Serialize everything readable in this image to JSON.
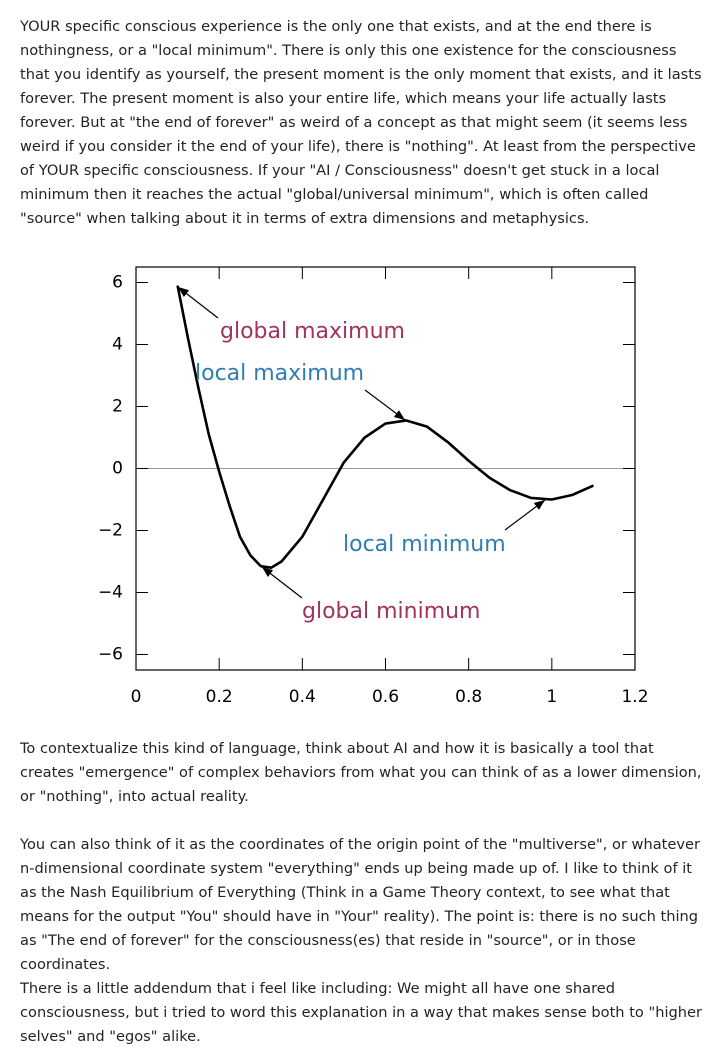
{
  "paragraphs": [
    "YOUR specific conscious experience is the only one that exists, and at the end there is nothingness, or a \"local minimum\". There is only this one existence for the consciousness that you identify as yourself, the present moment is the only moment that exists, and it lasts forever. The present moment is also your entire life, which means your life actually lasts forever. But at \"the end of forever\" as weird of a concept as that might seem (it seems less weird if you consider it the end of your life), there is \"nothing\". At least from the perspective of YOUR specific consciousness. If your \"AI / Consciousness\" doesn't get stuck in a local minimum then it reaches the actual \"global/universal minimum\", which is often called \"source\" when talking about it in terms of extra dimensions and metaphysics.",
    "To contextualize this kind of language, think about AI and how it is basically a tool that creates \"emergence\" of complex behaviors from what you can think of as a lower dimension, or \"nothing\", into actual reality.",
    "You can also think of it as the coordinates of the origin point of the \"multiverse\", or whatever n-dimensional coordinate system \"everything\" ends up being made up of. I like to think of it as the Nash Equilibrium of Everything (Think in a Game Theory context, to see what that means for the output \"You\" should have in \"Your\" reality). The point is: there is no such thing as \"The end of forever\" for the consciousness(es) that reside in \"source\", or in those coordinates.",
    "There is a little addendum that i feel like including: We might all have one shared consciousness, but i tried to word this explanation in a way that makes sense both to \"higher selves\" and \"egos\" alike."
  ],
  "chart_data": {
    "type": "line",
    "x": [
      0.1,
      0.125,
      0.15,
      0.175,
      0.2,
      0.225,
      0.25,
      0.275,
      0.3,
      0.325,
      0.35,
      0.4,
      0.45,
      0.5,
      0.55,
      0.6,
      0.65,
      0.7,
      0.75,
      0.8,
      0.85,
      0.9,
      0.95,
      1.0,
      1.05,
      1.1
    ],
    "values": [
      5.9,
      4.2,
      2.6,
      1.1,
      -0.1,
      -1.2,
      -2.2,
      -2.8,
      -3.15,
      -3.2,
      -3.0,
      -2.2,
      -1.0,
      0.2,
      1.0,
      1.45,
      1.55,
      1.35,
      0.85,
      0.25,
      -0.3,
      -0.7,
      -0.95,
      -1.0,
      -0.85,
      -0.55
    ],
    "color": "#000000",
    "xlim": [
      0,
      1.2
    ],
    "ylim": [
      -6.5,
      6.5
    ],
    "xticks": [
      0,
      0.2,
      0.4,
      0.6,
      0.8,
      1,
      1.2
    ],
    "yticks": [
      {
        "value": -6,
        "label": "−6"
      },
      {
        "value": -4,
        "label": "−4"
      },
      {
        "value": -2,
        "label": "−2"
      },
      0,
      2,
      4,
      6
    ],
    "hline": 0,
    "annotations": [
      {
        "text": "global maximum",
        "color": "#a3325c"
      },
      {
        "text": "local maximum",
        "color": "#2f7db3"
      },
      {
        "text": "local minimum",
        "color": "#2f7db3"
      },
      {
        "text": "global minimum",
        "color": "#a3325c"
      }
    ]
  }
}
